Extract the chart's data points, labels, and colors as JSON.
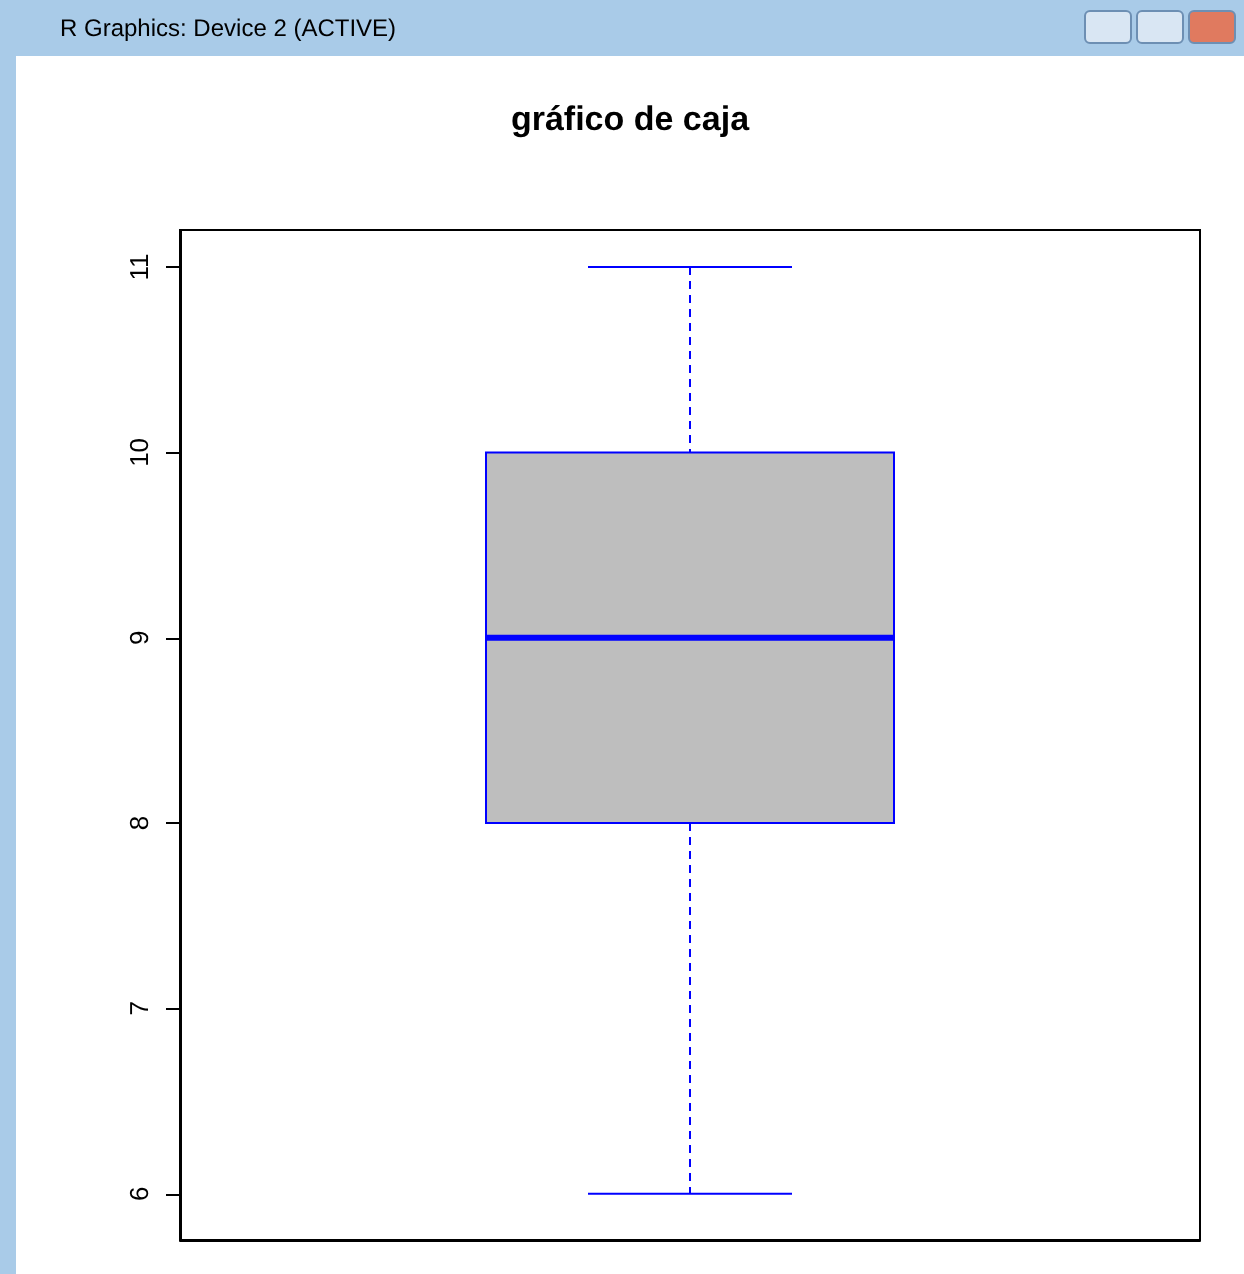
{
  "chart_data": {
    "type": "box",
    "title": "gráfico de caja",
    "annotations": [
      "R Graphics: Device 2 (ACTIVE)"
    ],
    "categories": [
      null
    ],
    "boxes": [
      {
        "low": 6,
        "q1": 8,
        "median": 9,
        "q3": 10,
        "high": 11
      }
    ],
    "color": "#0000ff",
    "ylim": [
      5.75,
      11.2
    ],
    "yticks": [
      6,
      7,
      8,
      9,
      10,
      11
    ],
    "grid": false,
    "tick_labels": "y"
  }
}
